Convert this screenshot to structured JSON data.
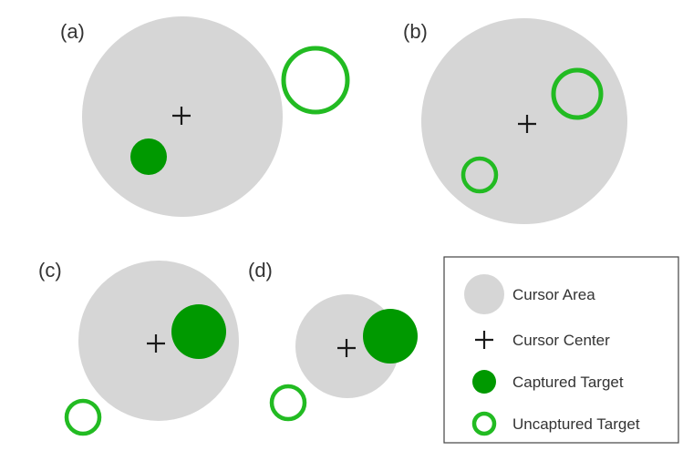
{
  "colors": {
    "cursor_area": "#d6d6d6",
    "target_green": "#009900",
    "uncaptured_ring": "#22bb22",
    "cursor_center": "#1a1a1a",
    "text": "#333333",
    "legend_border": "#444444"
  },
  "panels": [
    {
      "id": "a",
      "label": "(a)"
    },
    {
      "id": "b",
      "label": "(b)"
    },
    {
      "id": "c",
      "label": "(c)"
    },
    {
      "id": "d",
      "label": "(d)"
    }
  ],
  "legend": {
    "items": [
      {
        "icon": "cursor-area-icon",
        "label": "Cursor Area"
      },
      {
        "icon": "cursor-center-icon",
        "label": "Cursor Center"
      },
      {
        "icon": "captured-target-icon",
        "label": "Captured Target"
      },
      {
        "icon": "uncaptured-target-icon",
        "label": "Uncaptured Target"
      }
    ]
  }
}
